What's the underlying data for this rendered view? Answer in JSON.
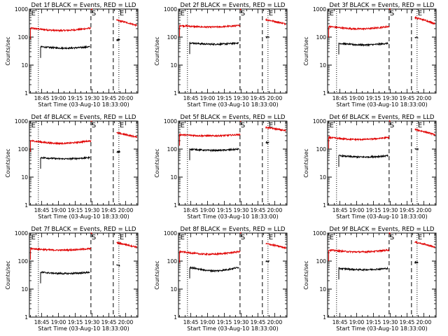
{
  "page": {
    "title_format": "Det {det} BLACK = Events, RED = LLD"
  },
  "colors": {
    "events": "#000000",
    "lld": "#e00000",
    "axis": "#000000",
    "background": "#ffffff"
  },
  "chart_data": [
    {
      "type": "line",
      "detector": "1f",
      "title": "Det 1f BLACK = Events, RED = LLD",
      "xlabel": "Start Time (03-Aug-10 18:33:00)",
      "ylabel": "Counts/sec",
      "yscale": "log",
      "ylim": [
        1,
        1000
      ],
      "xlim": [
        "18:34",
        "20:11"
      ],
      "xticks": [
        "18:45",
        "19:00",
        "19:15",
        "19:30",
        "19:45",
        "20:00"
      ],
      "yticks": [
        "1",
        "10",
        "100",
        "1000"
      ],
      "dotted_lines": [
        "18:42",
        "19:54"
      ],
      "dashed_lines": [
        "19:29",
        "19:49"
      ],
      "markers": [
        {
          "text": "E",
          "time": "18:35"
        },
        {
          "text": "S",
          "time": "19:29"
        },
        {
          "text": "E",
          "time": "19:54"
        }
      ],
      "series": [
        {
          "color": "red",
          "segments": [
            {
              "start": "18:35",
              "end": "19:29",
              "level": 210,
              "dip": 0.82
            },
            {
              "start": "19:29",
              "end": "19:30",
              "level": 1000
            },
            {
              "start": "19:52",
              "end": "20:10",
              "level": 400,
              "decay": 0.65
            }
          ]
        },
        {
          "color": "black",
          "segments": [
            {
              "start": "18:44",
              "end": "19:28",
              "level": 45,
              "dip": 0.9
            },
            {
              "start": "19:52",
              "end": "19:55",
              "level": 80
            }
          ]
        }
      ]
    },
    {
      "type": "line",
      "detector": "2f",
      "title": "Det 2f BLACK = Events, RED = LLD",
      "xlabel": "Start Time (03-Aug-10 18:33:00)",
      "ylabel": "Counts/sec",
      "yscale": "log",
      "ylim": [
        1,
        1000
      ],
      "xlim": [
        "18:34",
        "20:11"
      ],
      "xticks": [
        "18:45",
        "19:00",
        "19:15",
        "19:30",
        "19:45",
        "20:00"
      ],
      "yticks": [
        "1",
        "10",
        "100",
        "1000"
      ],
      "dotted_lines": [
        "18:42",
        "19:54"
      ],
      "dashed_lines": [
        "19:29",
        "19:49"
      ],
      "markers": [
        {
          "text": "E",
          "time": "18:35"
        },
        {
          "text": "S",
          "time": "19:29"
        },
        {
          "text": "E",
          "time": "19:54"
        }
      ],
      "series": [
        {
          "color": "red",
          "segments": [
            {
              "start": "18:35",
              "end": "19:29",
              "level": 260,
              "dip": 0.88
            },
            {
              "start": "19:29",
              "end": "19:30",
              "level": 1000
            },
            {
              "start": "19:52",
              "end": "20:10",
              "level": 420,
              "decay": 0.7
            }
          ]
        },
        {
          "color": "black",
          "segments": [
            {
              "start": "18:44",
              "end": "19:28",
              "level": 62,
              "dip": 0.9
            },
            {
              "start": "19:52",
              "end": "19:55",
              "level": 100
            }
          ]
        }
      ]
    },
    {
      "type": "line",
      "detector": "3f",
      "title": "Det 3f BLACK = Events, RED = LLD",
      "xlabel": "Start Time (03-Aug-10 18:33:00)",
      "ylabel": "Counts/sec",
      "yscale": "log",
      "ylim": [
        1,
        1000
      ],
      "xlim": [
        "18:34",
        "20:11"
      ],
      "xticks": [
        "18:45",
        "19:00",
        "19:15",
        "19:30",
        "19:45",
        "20:00"
      ],
      "yticks": [
        "1",
        "10",
        "100",
        "1000"
      ],
      "dotted_lines": [
        "18:42",
        "19:54"
      ],
      "dashed_lines": [
        "19:29",
        "19:49"
      ],
      "markers": [
        {
          "text": "E",
          "time": "18:35"
        },
        {
          "text": "S",
          "time": "19:29"
        },
        {
          "text": "E",
          "time": "19:54"
        }
      ],
      "series": [
        {
          "color": "red",
          "segments": [
            {
              "start": "18:35",
              "end": "19:29",
              "level": 240,
              "dip": 0.82
            },
            {
              "start": "19:29",
              "end": "19:30",
              "level": 1000
            },
            {
              "start": "19:52",
              "end": "20:10",
              "level": 500,
              "decay": 0.6
            }
          ]
        },
        {
          "color": "black",
          "segments": [
            {
              "start": "18:44",
              "end": "19:28",
              "level": 60,
              "dip": 0.88
            },
            {
              "start": "19:52",
              "end": "19:55",
              "level": 95
            }
          ]
        }
      ]
    },
    {
      "type": "line",
      "detector": "4f",
      "title": "Det 4f BLACK = Events, RED = LLD",
      "xlabel": "Start Time (03-Aug-10 18:33:00)",
      "ylabel": "Counts/sec",
      "yscale": "log",
      "ylim": [
        1,
        1000
      ],
      "xlim": [
        "18:34",
        "20:11"
      ],
      "xticks": [
        "18:45",
        "19:00",
        "19:15",
        "19:30",
        "19:45",
        "20:00"
      ],
      "yticks": [
        "1",
        "10",
        "100",
        "1000"
      ],
      "dotted_lines": [
        "18:42",
        "19:54"
      ],
      "dashed_lines": [
        "19:29",
        "19:49"
      ],
      "markers": [
        {
          "text": "E",
          "time": "18:35"
        },
        {
          "text": "S",
          "time": "19:29"
        },
        {
          "text": "E",
          "time": "19:54"
        }
      ],
      "series": [
        {
          "color": "red",
          "segments": [
            {
              "start": "18:35",
              "end": "19:29",
              "level": 200,
              "dip": 0.8
            },
            {
              "start": "19:29",
              "end": "19:30",
              "level": 1000
            },
            {
              "start": "19:52",
              "end": "20:10",
              "level": 380,
              "decay": 0.7
            }
          ]
        },
        {
          "color": "black",
          "segments": [
            {
              "start": "18:44",
              "end": "19:28",
              "level": 50,
              "dip": 0.9
            },
            {
              "start": "19:52",
              "end": "19:55",
              "level": 80
            }
          ]
        }
      ]
    },
    {
      "type": "line",
      "detector": "5f",
      "title": "Det 5f BLACK = Events, RED = LLD",
      "xlabel": "Start Time (03-Aug-10 18:33:00)",
      "ylabel": "Counts/sec",
      "yscale": "log",
      "ylim": [
        1,
        1000
      ],
      "xlim": [
        "18:34",
        "20:11"
      ],
      "xticks": [
        "18:45",
        "19:00",
        "19:15",
        "19:30",
        "19:45",
        "20:00"
      ],
      "yticks": [
        "1",
        "10",
        "100",
        "1000"
      ],
      "dotted_lines": [
        "18:42",
        "19:54"
      ],
      "dashed_lines": [
        "19:29",
        "19:49"
      ],
      "markers": [
        {
          "text": "E",
          "time": "18:35"
        },
        {
          "text": "S",
          "time": "19:29"
        },
        {
          "text": "E",
          "time": "19:54"
        }
      ],
      "series": [
        {
          "color": "red",
          "segments": [
            {
              "start": "18:35",
              "end": "19:29",
              "level": 330,
              "dip": 0.9
            },
            {
              "start": "19:29",
              "end": "19:30",
              "level": 1000
            },
            {
              "start": "19:52",
              "end": "20:10",
              "level": 600,
              "decay": 0.75
            }
          ]
        },
        {
          "color": "black",
          "segments": [
            {
              "start": "18:44",
              "end": "19:28",
              "level": 100,
              "dip": 0.9
            },
            {
              "start": "19:52",
              "end": "19:55",
              "level": 170
            }
          ]
        }
      ]
    },
    {
      "type": "line",
      "detector": "6f",
      "title": "Det 6f BLACK = Events, RED = LLD",
      "xlabel": "Start Time (03-Aug-10 18:33:00)",
      "ylabel": "Counts/sec",
      "yscale": "log",
      "ylim": [
        1,
        1000
      ],
      "xlim": [
        "18:34",
        "20:11"
      ],
      "xticks": [
        "18:45",
        "19:00",
        "19:15",
        "19:30",
        "19:45",
        "20:00"
      ],
      "yticks": [
        "1",
        "10",
        "100",
        "1000"
      ],
      "dotted_lines": [
        "18:42",
        "19:54"
      ],
      "dashed_lines": [
        "19:29",
        "19:49"
      ],
      "markers": [
        {
          "text": "E",
          "time": "18:35"
        },
        {
          "text": "S",
          "time": "19:29"
        },
        {
          "text": "E",
          "time": "19:54"
        }
      ],
      "series": [
        {
          "color": "red",
          "segments": [
            {
              "start": "18:35",
              "end": "19:29",
              "level": 260,
              "dip": 0.85
            },
            {
              "start": "19:29",
              "end": "19:30",
              "level": 1000
            },
            {
              "start": "19:52",
              "end": "20:10",
              "level": 500,
              "decay": 0.65
            }
          ]
        },
        {
          "color": "black",
          "segments": [
            {
              "start": "18:44",
              "end": "19:28",
              "level": 58,
              "dip": 0.9
            },
            {
              "start": "19:52",
              "end": "19:55",
              "level": 100
            }
          ]
        }
      ]
    },
    {
      "type": "line",
      "detector": "7f",
      "title": "Det 7f BLACK = Events, RED = LLD",
      "xlabel": "Start Time (03-Aug-10 18:33:00)",
      "ylabel": "Counts/sec",
      "yscale": "log",
      "ylim": [
        1,
        1000
      ],
      "xlim": [
        "18:34",
        "20:11"
      ],
      "xticks": [
        "18:45",
        "19:00",
        "19:15",
        "19:30",
        "19:45",
        "20:00"
      ],
      "yticks": [
        "1",
        "10",
        "100",
        "1000"
      ],
      "dotted_lines": [
        "18:42",
        "19:54"
      ],
      "dashed_lines": [
        "19:29",
        "19:49"
      ],
      "markers": [
        {
          "text": "E",
          "time": "18:35"
        },
        {
          "text": "S",
          "time": "19:29"
        },
        {
          "text": "E",
          "time": "19:54"
        }
      ],
      "series": [
        {
          "color": "red",
          "segments": [
            {
              "start": "18:35",
              "end": "19:29",
              "level": 280,
              "dip": 0.88
            },
            {
              "start": "19:29",
              "end": "19:30",
              "level": 1000
            },
            {
              "start": "19:52",
              "end": "20:10",
              "level": 450,
              "decay": 0.7
            }
          ]
        },
        {
          "color": "black",
          "segments": [
            {
              "start": "18:44",
              "end": "19:28",
              "level": 40,
              "dip": 0.9
            },
            {
              "start": "19:52",
              "end": "19:55",
              "level": 70
            }
          ]
        }
      ]
    },
    {
      "type": "line",
      "detector": "8f",
      "title": "Det 8f BLACK = Events, RED = LLD",
      "xlabel": "Start Time (03-Aug-10 18:33:00)",
      "ylabel": "Counts/sec",
      "yscale": "log",
      "ylim": [
        1,
        1000
      ],
      "xlim": [
        "18:34",
        "20:11"
      ],
      "xticks": [
        "18:45",
        "19:00",
        "19:15",
        "19:30",
        "19:45",
        "20:00"
      ],
      "yticks": [
        "1",
        "10",
        "100",
        "1000"
      ],
      "dotted_lines": [
        "18:42",
        "19:54"
      ],
      "dashed_lines": [
        "19:29",
        "19:49"
      ],
      "markers": [
        {
          "text": "E",
          "time": "18:35"
        },
        {
          "text": "S",
          "time": "19:29"
        },
        {
          "text": "E",
          "time": "19:54"
        }
      ],
      "series": [
        {
          "color": "red",
          "segments": [
            {
              "start": "18:35",
              "end": "19:29",
              "level": 220,
              "dip": 0.8
            },
            {
              "start": "19:29",
              "end": "19:30",
              "level": 1000
            },
            {
              "start": "19:52",
              "end": "20:10",
              "level": 420,
              "decay": 0.7
            }
          ]
        },
        {
          "color": "black",
          "segments": [
            {
              "start": "18:44",
              "end": "19:28",
              "level": 60,
              "dip": 0.75
            },
            {
              "start": "19:52",
              "end": "19:55",
              "level": 100
            }
          ]
        }
      ]
    },
    {
      "type": "line",
      "detector": "9f",
      "title": "Det 9f BLACK = Events, RED = LLD",
      "xlabel": "Start Time (03-Aug-10 18:33:00)",
      "ylabel": "Counts/sec",
      "yscale": "log",
      "ylim": [
        1,
        1000
      ],
      "xlim": [
        "18:34",
        "20:11"
      ],
      "xticks": [
        "18:45",
        "19:00",
        "19:15",
        "19:30",
        "19:45",
        "20:00"
      ],
      "yticks": [
        "1",
        "10",
        "100",
        "1000"
      ],
      "dotted_lines": [
        "18:42",
        "19:54"
      ],
      "dashed_lines": [
        "19:29",
        "19:49"
      ],
      "markers": [
        {
          "text": "E",
          "time": "18:35"
        },
        {
          "text": "S",
          "time": "19:29"
        },
        {
          "text": "E",
          "time": "19:54"
        }
      ],
      "series": [
        {
          "color": "red",
          "segments": [
            {
              "start": "18:35",
              "end": "19:29",
              "level": 250,
              "dip": 0.85
            },
            {
              "start": "19:29",
              "end": "19:30",
              "level": 1000
            },
            {
              "start": "19:52",
              "end": "20:10",
              "level": 480,
              "decay": 0.65
            }
          ]
        },
        {
          "color": "black",
          "segments": [
            {
              "start": "18:44",
              "end": "19:28",
              "level": 55,
              "dip": 0.9
            },
            {
              "start": "19:52",
              "end": "19:55",
              "level": 90
            }
          ]
        }
      ]
    }
  ]
}
